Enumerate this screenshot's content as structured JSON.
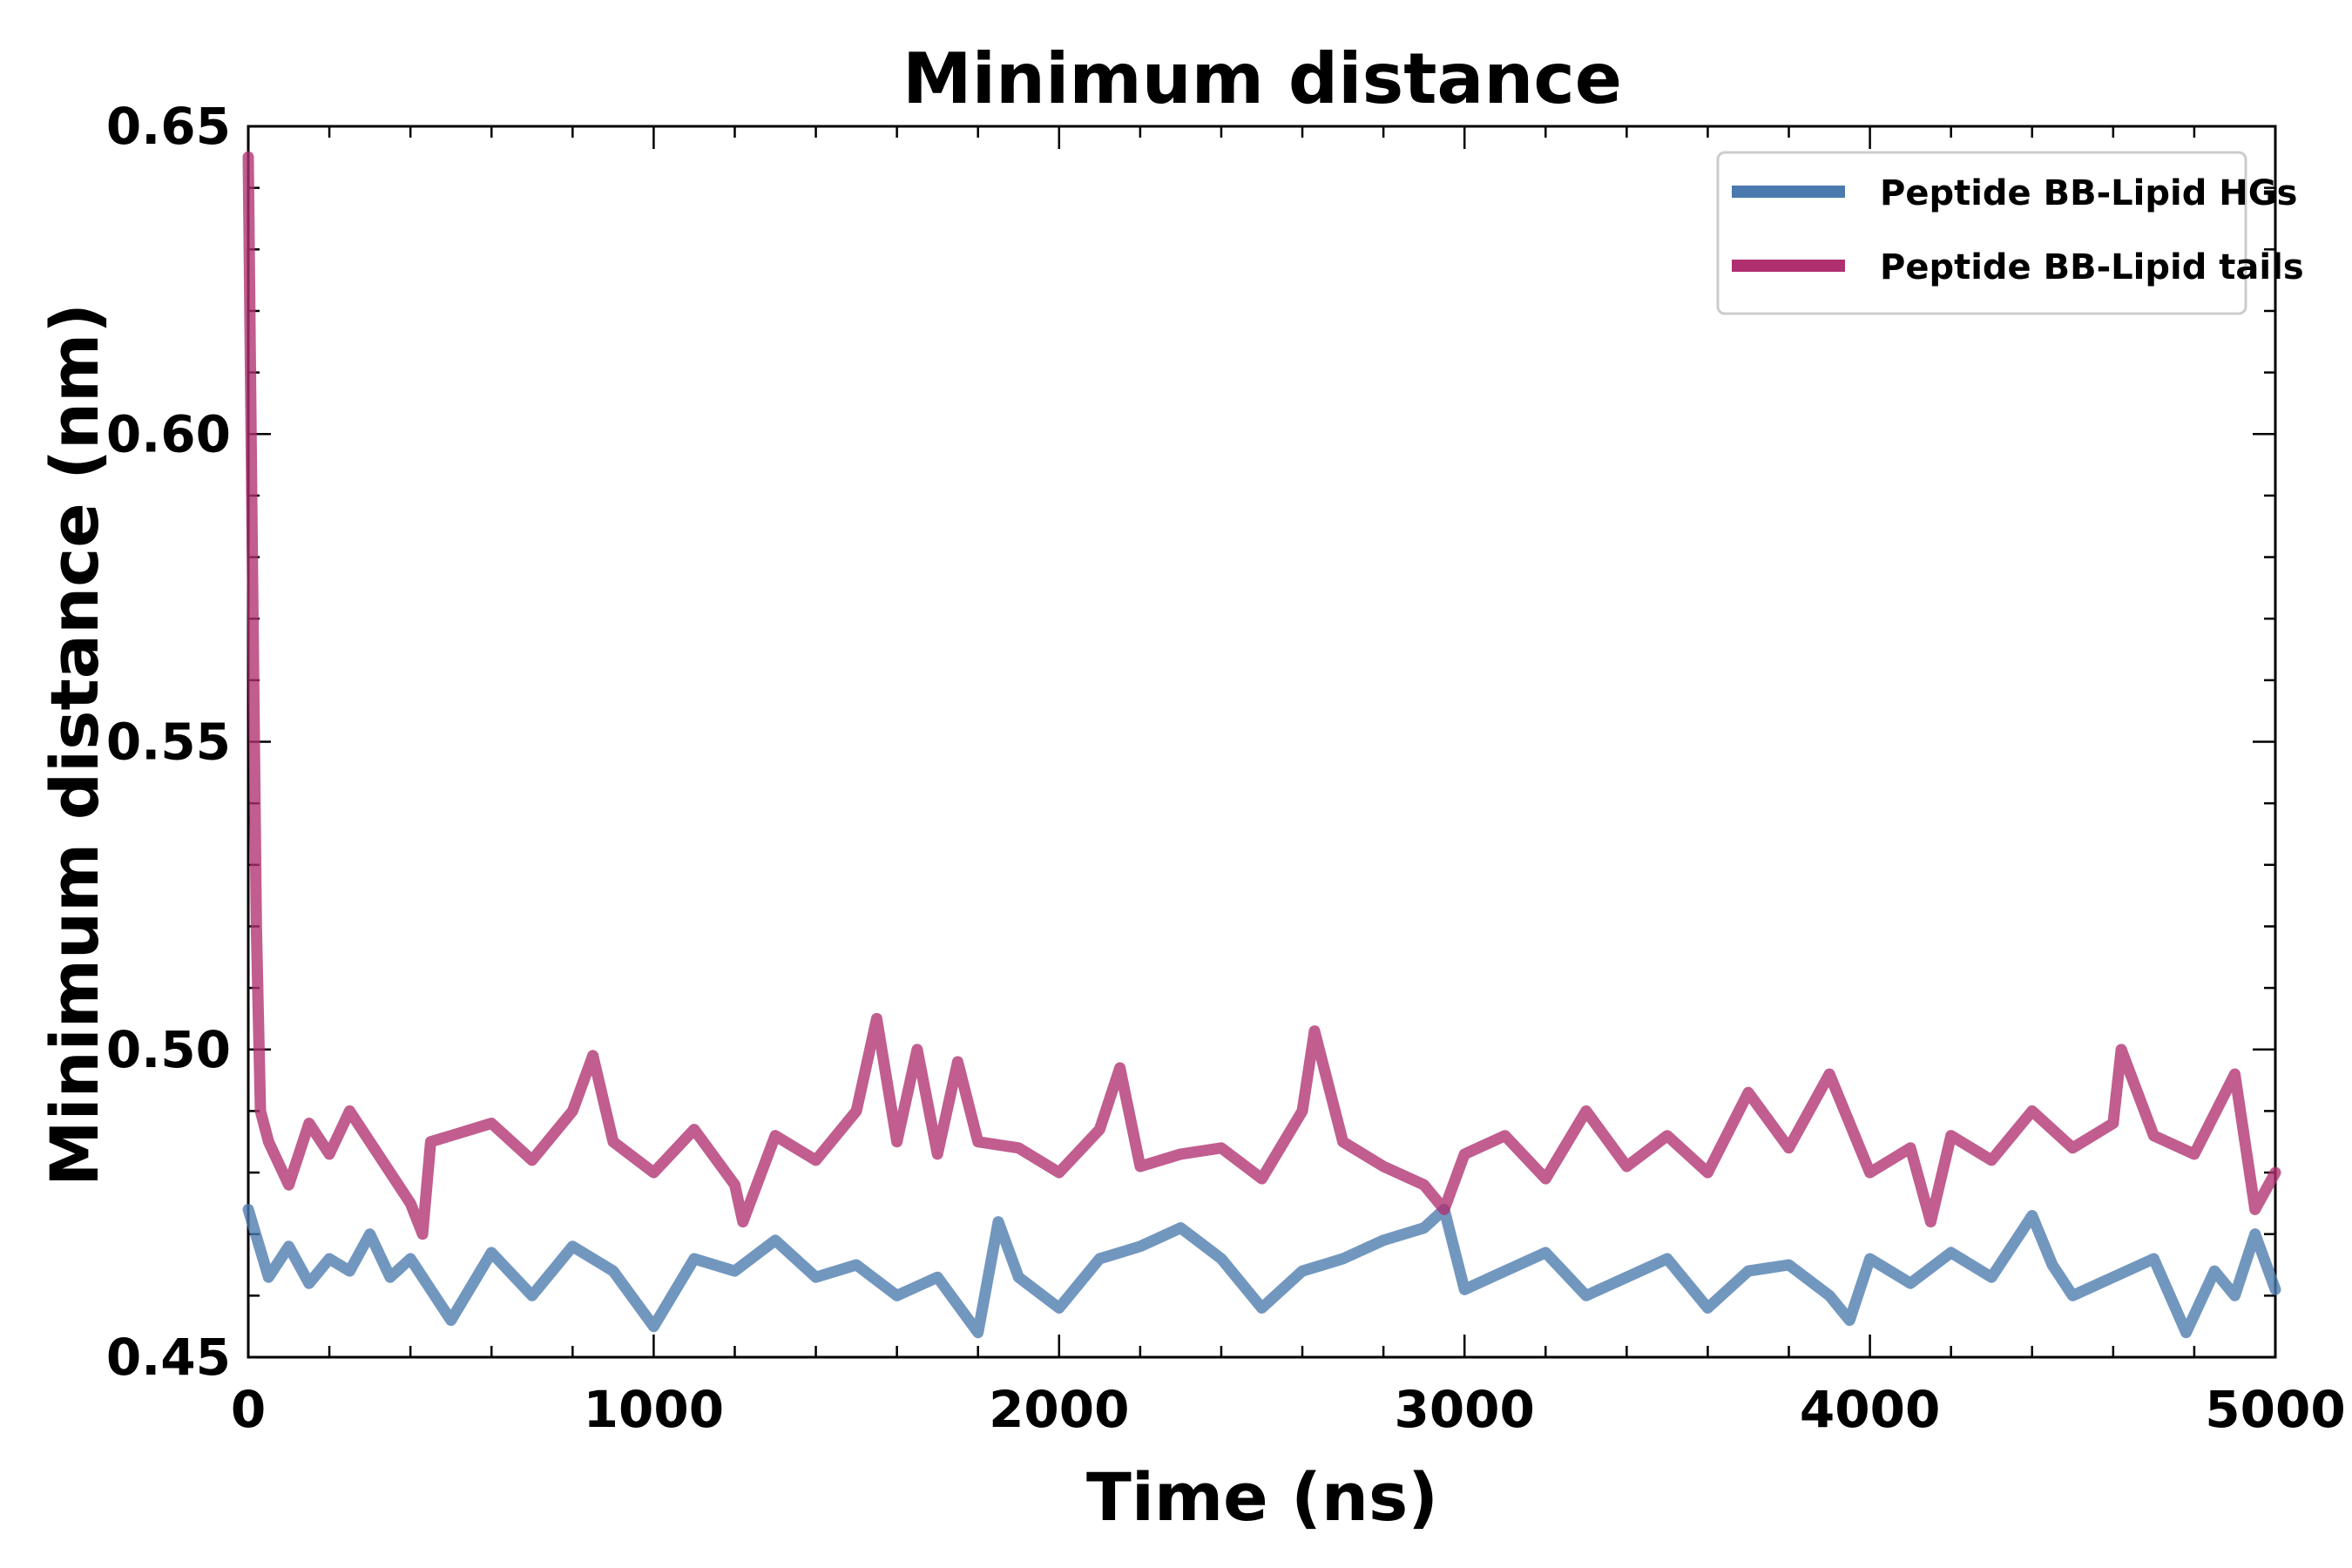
{
  "chart_data": {
    "type": "line",
    "title": "Minimum distance",
    "xlabel": "Time (ns)",
    "ylabel": "Minimum distance (nm)",
    "xlim": [
      0,
      5000
    ],
    "ylim": [
      0.45,
      0.65
    ],
    "xticks": [
      "0",
      "1000",
      "2000",
      "3000",
      "4000",
      "5000"
    ],
    "yticks": [
      "0.45",
      "0.50",
      "0.55",
      "0.60",
      "0.65"
    ],
    "grid": false,
    "legend_position": "top-right",
    "series": [
      {
        "name": "Peptide BB-Lipid HGs",
        "color": "#4a7aad",
        "x": [
          0,
          50,
          100,
          150,
          200,
          250,
          300,
          350,
          400,
          450,
          500,
          600,
          700,
          800,
          900,
          1000,
          1100,
          1200,
          1300,
          1400,
          1500,
          1600,
          1700,
          1800,
          1850,
          1900,
          2000,
          2100,
          2200,
          2300,
          2400,
          2500,
          2600,
          2700,
          2800,
          2900,
          2950,
          3000,
          3100,
          3200,
          3300,
          3400,
          3500,
          3600,
          3700,
          3800,
          3900,
          3950,
          4000,
          4100,
          4200,
          4300,
          4400,
          4450,
          4500,
          4600,
          4700,
          4780,
          4850,
          4900,
          4950,
          5000
        ],
        "y": [
          0.474,
          0.463,
          0.468,
          0.462,
          0.466,
          0.464,
          0.47,
          0.463,
          0.466,
          0.461,
          0.456,
          0.467,
          0.46,
          0.468,
          0.464,
          0.455,
          0.466,
          0.464,
          0.469,
          0.463,
          0.465,
          0.46,
          0.463,
          0.454,
          0.472,
          0.463,
          0.458,
          0.466,
          0.468,
          0.471,
          0.466,
          0.458,
          0.464,
          0.466,
          0.469,
          0.471,
          0.474,
          0.461,
          0.464,
          0.467,
          0.46,
          0.463,
          0.466,
          0.458,
          0.464,
          0.465,
          0.46,
          0.456,
          0.466,
          0.462,
          0.467,
          0.463,
          0.473,
          0.465,
          0.46,
          0.463,
          0.466,
          0.454,
          0.464,
          0.46,
          0.47,
          0.461
        ]
      },
      {
        "name": "Peptide BB-Lipid tails",
        "color": "#b0306f",
        "x": [
          0,
          10,
          20,
          30,
          50,
          100,
          150,
          200,
          250,
          300,
          350,
          400,
          430,
          450,
          500,
          600,
          700,
          800,
          850,
          900,
          1000,
          1100,
          1200,
          1220,
          1300,
          1400,
          1500,
          1550,
          1600,
          1650,
          1700,
          1750,
          1800,
          1900,
          2000,
          2100,
          2150,
          2200,
          2300,
          2400,
          2500,
          2600,
          2630,
          2700,
          2800,
          2900,
          2950,
          3000,
          3100,
          3200,
          3300,
          3400,
          3500,
          3600,
          3700,
          3800,
          3900,
          4000,
          4100,
          4150,
          4200,
          4300,
          4400,
          4500,
          4600,
          4620,
          4700,
          4800,
          4900,
          4950,
          5000
        ],
        "y": [
          0.645,
          0.58,
          0.52,
          0.49,
          0.485,
          0.478,
          0.488,
          0.483,
          0.49,
          0.485,
          0.48,
          0.475,
          0.47,
          0.485,
          0.486,
          0.488,
          0.482,
          0.49,
          0.499,
          0.485,
          0.48,
          0.487,
          0.478,
          0.472,
          0.486,
          0.482,
          0.49,
          0.505,
          0.485,
          0.5,
          0.483,
          0.498,
          0.485,
          0.484,
          0.48,
          0.487,
          0.497,
          0.481,
          0.483,
          0.484,
          0.479,
          0.49,
          0.503,
          0.485,
          0.481,
          0.478,
          0.474,
          0.483,
          0.486,
          0.479,
          0.49,
          0.481,
          0.486,
          0.48,
          0.493,
          0.484,
          0.496,
          0.48,
          0.484,
          0.472,
          0.486,
          0.482,
          0.49,
          0.484,
          0.488,
          0.5,
          0.486,
          0.483,
          0.496,
          0.474,
          0.48
        ]
      }
    ]
  }
}
